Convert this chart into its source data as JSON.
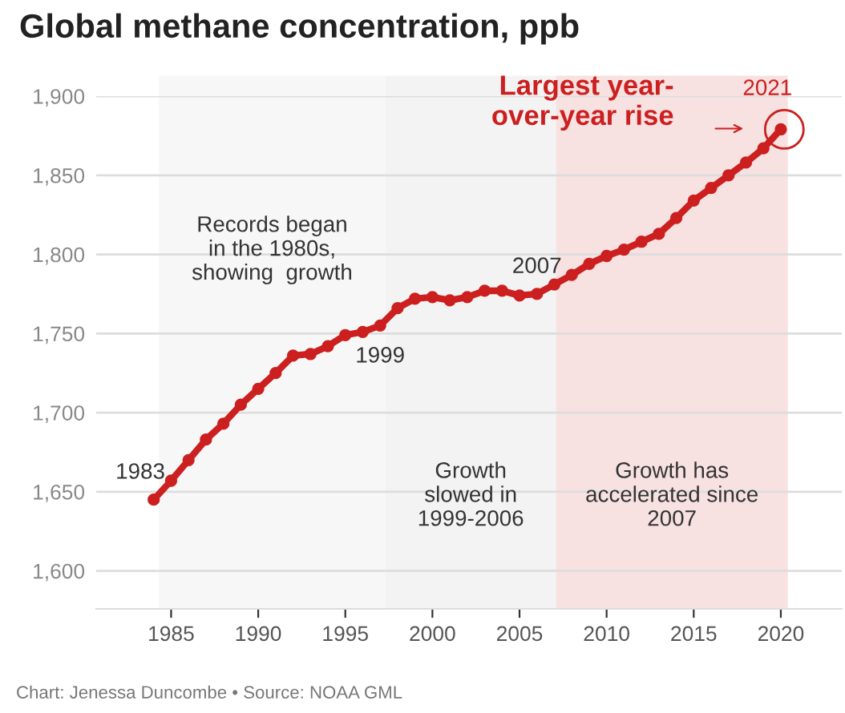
{
  "chart_data": {
    "type": "line",
    "title": "Global methane concentration, ppb",
    "x": [
      1984,
      1985,
      1986,
      1987,
      1988,
      1989,
      1990,
      1991,
      1992,
      1993,
      1994,
      1995,
      1996,
      1997,
      1998,
      1999,
      2000,
      2001,
      2002,
      2003,
      2004,
      2005,
      2006,
      2007,
      2008,
      2009,
      2010,
      2011,
      2012,
      2013,
      2014,
      2015,
      2016,
      2017,
      2018,
      2019,
      2020
    ],
    "series": [
      {
        "color": "#cc1f1f",
        "values": [
          1645,
          1657,
          1670,
          1683,
          1693,
          1705,
          1715,
          1725,
          1736,
          1737,
          1742,
          1749,
          1751,
          1755,
          1766,
          1772,
          1773,
          1771,
          1773,
          1777,
          1777,
          1774,
          1775,
          1781,
          1787,
          1794,
          1799,
          1803,
          1808,
          1813,
          1823,
          1834,
          1842,
          1850,
          1858,
          1867,
          1879
        ]
      }
    ],
    "marker": "circle",
    "line_style": "solid",
    "xlim": [
      1980.7,
      2023.5
    ],
    "ylim": [
      1576,
      1900
    ],
    "xticks": [
      1985,
      1990,
      1995,
      2000,
      2005,
      2010,
      2015,
      2020
    ],
    "yticks": [
      {
        "value": 1600,
        "label": "1,600"
      },
      {
        "value": 1650,
        "label": "1,650"
      },
      {
        "value": 1700,
        "label": "1,700"
      },
      {
        "value": 1750,
        "label": "1,750"
      },
      {
        "value": 1800,
        "label": "1,800"
      },
      {
        "value": 1850,
        "label": "1,850"
      },
      {
        "value": 1900,
        "label": "1,900"
      }
    ],
    "grid": "y",
    "bands": [
      {
        "axis": "x",
        "from": 1984.3,
        "to": 1997.3,
        "label": "Records began\nin the 1980s,\nshowing  growth",
        "color": "#f7f7f7"
      },
      {
        "axis": "x",
        "from": 1997.3,
        "to": 2007.1,
        "label": "Growth\nslowed in\n1999-2006",
        "color": "#f3f3f3"
      },
      {
        "axis": "x",
        "from": 2007.1,
        "to": 2020.4,
        "label": "Growth has\naccelerated since\n2007",
        "color": "#f7e1e1"
      }
    ],
    "annotations": [
      {
        "text": "1983",
        "x": 1984,
        "y": 1645
      },
      {
        "text": "1999",
        "x": 1997,
        "y": 1755
      },
      {
        "text": "2007",
        "x": 2006,
        "y": 1775
      },
      {
        "text": "2021",
        "x": 2020,
        "y": 1879
      },
      "Largest year-\nover-year rise",
      "Chart: Jenessa Duncombe • Source: NOAA GML"
    ]
  }
}
